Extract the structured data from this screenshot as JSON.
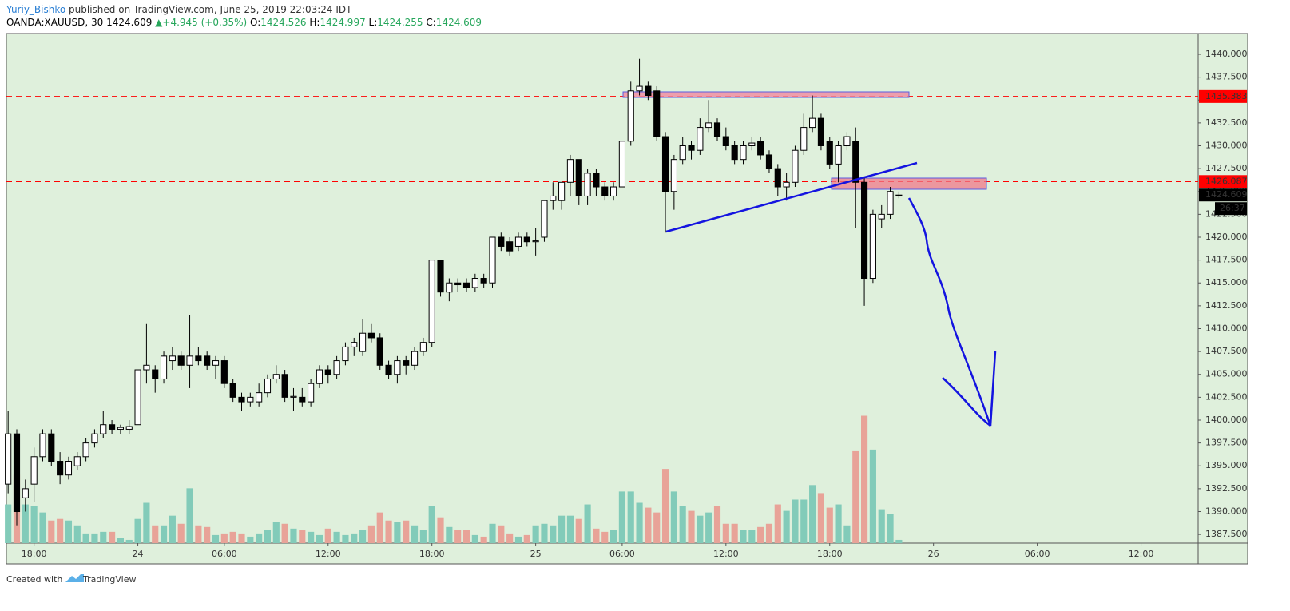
{
  "header": {
    "author": "Yuriy_Bishko",
    "published": "published on TradingView.com, June 25, 2019 22:03:24 IDT",
    "symbol": "OANDA:XAUUSD, 30",
    "price": "1424.609",
    "arrow": "▲",
    "change": "+4.945 (+0.35%)",
    "o_label": "O:",
    "o": "1424.526",
    "h_label": "H:",
    "h": "1424.997",
    "l_label": "L:",
    "l": "1424.255",
    "c_label": "C:",
    "c": "1424.609"
  },
  "footer": {
    "created": "Created with",
    "brand": "TradingView"
  },
  "chart_data": {
    "type": "candlestick",
    "open": [
      1393,
      1398.5,
      1391.5,
      1393,
      1396,
      1398.5,
      1395.5,
      1394,
      1395,
      1396,
      1397.5,
      1398.5,
      1399.5,
      1399,
      1399,
      1399.5,
      1405.5,
      1405.5,
      1404.5,
      1406.5,
      1407,
      1406,
      1407,
      1407,
      1406,
      1406.5,
      1404,
      1402.5,
      1402,
      1402,
      1403,
      1404.5,
      1405,
      1402.5,
      1402.5,
      1402,
      1404,
      1405.5,
      1405,
      1406.5,
      1408,
      1407.5,
      1409.5,
      1409,
      1406,
      1405,
      1406.5,
      1406,
      1407.5,
      1408.5,
      1417.5,
      1414,
      1415,
      1415,
      1414.5,
      1415.5,
      1415,
      1420,
      1419.5,
      1419,
      1420,
      1419.5,
      1420,
      1424,
      1424,
      1426,
      1428.5,
      1424.5,
      1427,
      1425.5,
      1424.5,
      1425.5,
      1430.5,
      1436,
      1436.5,
      1436,
      1431,
      1425,
      1428.5,
      1430,
      1429.5,
      1432,
      1432.5,
      1431,
      1430,
      1428.5,
      1430,
      1430.5,
      1429,
      1427.5,
      1425.5,
      1426,
      1429.5,
      1432,
      1433,
      1430.5,
      1428,
      1430,
      1430.5,
      1426,
      1415.5,
      1422,
      1422.5,
      1424.526
    ],
    "high": [
      1401,
      1399,
      1393.5,
      1397,
      1399,
      1399,
      1396.5,
      1396,
      1396.5,
      1398,
      1399,
      1401,
      1400,
      1399.5,
      1400,
      1405.5,
      1410.5,
      1406,
      1407.5,
      1408,
      1407.5,
      1411.5,
      1408,
      1407.5,
      1407,
      1407,
      1404.5,
      1403,
      1403,
      1404,
      1405,
      1406,
      1405.5,
      1403.5,
      1403.5,
      1404.5,
      1406,
      1406,
      1407,
      1408.5,
      1409,
      1411,
      1410.5,
      1409.5,
      1406.5,
      1407,
      1407,
      1408,
      1409,
      1417.5,
      1417.5,
      1415.5,
      1415.5,
      1415.5,
      1416,
      1416,
      1420,
      1420.5,
      1420,
      1420.5,
      1420.5,
      1421,
      1424,
      1426,
      1426,
      1429,
      1428.5,
      1427.5,
      1427.5,
      1426,
      1426,
      1430.5,
      1437,
      1439.5,
      1437,
      1436.5,
      1431.5,
      1429,
      1431,
      1430.5,
      1433,
      1435,
      1433,
      1432,
      1430.5,
      1430.5,
      1431,
      1431,
      1429.5,
      1428,
      1427,
      1430,
      1433.5,
      1435.5,
      1433.5,
      1431,
      1430.5,
      1431.5,
      1432,
      1426.5,
      1423,
      1423.5,
      1425.5,
      1424.997
    ],
    "low": [
      1392,
      1388.5,
      1390,
      1391,
      1395.5,
      1395,
      1393,
      1393.5,
      1394.5,
      1395.5,
      1397,
      1398,
      1398.5,
      1398.5,
      1398.5,
      1399.5,
      1404,
      1403,
      1404,
      1405.5,
      1405.5,
      1403.5,
      1406,
      1405.5,
      1404.5,
      1403.5,
      1402,
      1401,
      1401.5,
      1401.5,
      1402.5,
      1404,
      1402,
      1401,
      1401.5,
      1401.5,
      1403.5,
      1404,
      1404.5,
      1406,
      1407,
      1407,
      1408.5,
      1405.5,
      1404.5,
      1404,
      1405,
      1405.5,
      1407,
      1408,
      1413.5,
      1413,
      1414,
      1414,
      1414,
      1414.5,
      1414.5,
      1418.5,
      1418,
      1418.5,
      1419,
      1418,
      1419.5,
      1423,
      1423,
      1424.5,
      1423.5,
      1423.5,
      1424.5,
      1424,
      1424,
      1425.5,
      1430,
      1435.5,
      1435,
      1430.5,
      1420.5,
      1423,
      1428,
      1428.5,
      1429,
      1431.5,
      1430.5,
      1429.5,
      1428,
      1428,
      1429.5,
      1428.5,
      1427,
      1424.5,
      1424,
      1425.5,
      1429,
      1431.5,
      1429.5,
      1427.5,
      1426,
      1429.5,
      1421,
      1412.5,
      1415,
      1421,
      1422,
      1424.255
    ],
    "close": [
      1398.5,
      1390,
      1392.5,
      1396,
      1398.5,
      1395.5,
      1394,
      1395.5,
      1396,
      1397.5,
      1398.5,
      1399.5,
      1399,
      1399.2,
      1399.3,
      1405.5,
      1406,
      1404.5,
      1407,
      1407,
      1406,
      1407,
      1406.5,
      1406,
      1406.5,
      1404,
      1402.5,
      1402,
      1402.5,
      1403,
      1404.5,
      1405,
      1402.5,
      1402.6,
      1402,
      1404,
      1405.5,
      1405,
      1406.5,
      1408,
      1408.5,
      1409.5,
      1409,
      1406,
      1405,
      1406.5,
      1406,
      1407.5,
      1408.5,
      1417.5,
      1414,
      1415,
      1414.8,
      1414.5,
      1415.5,
      1415,
      1420,
      1419,
      1418.5,
      1420,
      1419.5,
      1419.6,
      1424,
      1424.5,
      1426,
      1428.5,
      1424.5,
      1427,
      1425.5,
      1424.5,
      1425.5,
      1430.5,
      1436,
      1436.5,
      1435.5,
      1431,
      1425,
      1428.5,
      1430,
      1429.5,
      1432,
      1432.5,
      1431,
      1430,
      1428.5,
      1430,
      1430.3,
      1429,
      1427.5,
      1425.5,
      1426,
      1429.5,
      1432,
      1433,
      1430,
      1428,
      1430,
      1431,
      1426,
      1415.5,
      1422.5,
      1422.5,
      1425,
      1424.609
    ],
    "volume": [
      48,
      85,
      48,
      46,
      38,
      28,
      30,
      28,
      22,
      12,
      12,
      14,
      14,
      6,
      4,
      30,
      50,
      22,
      22,
      34,
      24,
      68,
      22,
      20,
      10,
      12,
      14,
      12,
      8,
      12,
      16,
      26,
      24,
      18,
      16,
      14,
      10,
      18,
      14,
      10,
      12,
      16,
      22,
      38,
      28,
      26,
      28,
      22,
      16,
      46,
      32,
      20,
      16,
      16,
      10,
      8,
      24,
      22,
      12,
      8,
      10,
      22,
      24,
      22,
      34,
      34,
      30,
      48,
      18,
      14,
      16,
      64,
      64,
      50,
      44,
      38,
      92,
      64,
      46,
      40,
      34,
      38,
      46,
      24,
      24,
      16,
      16,
      20,
      24,
      48,
      40,
      54,
      54,
      72,
      62,
      44,
      48,
      22,
      114,
      158,
      116,
      42,
      36,
      4
    ],
    "up_color": "#ffffff",
    "down_color": "#000000",
    "volume_up_color": "#82cbb9",
    "volume_down_color": "#e8a398",
    "ylim": [
      1386.55,
      1442.27
    ],
    "yticks": [
      {
        "value": 1440,
        "label": "1440.000"
      },
      {
        "value": 1437.5,
        "label": "1437.500"
      },
      {
        "value": 1435,
        "label": "1435.000"
      },
      {
        "value": 1432.5,
        "label": "1432.500"
      },
      {
        "value": 1430,
        "label": "1430.000"
      },
      {
        "value": 1427.5,
        "label": "1427.500"
      },
      {
        "value": 1425,
        "label": "1425.000"
      },
      {
        "value": 1422.5,
        "label": "1422.500"
      },
      {
        "value": 1420,
        "label": "1420.000"
      },
      {
        "value": 1417.5,
        "label": "1417.500"
      },
      {
        "value": 1415,
        "label": "1415.000"
      },
      {
        "value": 1412.5,
        "label": "1412.500"
      },
      {
        "value": 1410,
        "label": "1410.000"
      },
      {
        "value": 1407.5,
        "label": "1407.500"
      },
      {
        "value": 1405,
        "label": "1405.000"
      },
      {
        "value": 1402.5,
        "label": "1402.500"
      },
      {
        "value": 1400,
        "label": "1400.000"
      },
      {
        "value": 1397.5,
        "label": "1397.500"
      },
      {
        "value": 1395,
        "label": "1395.000"
      },
      {
        "value": 1392.5,
        "label": "1392.500"
      },
      {
        "value": 1390,
        "label": "1390.000"
      },
      {
        "value": 1387.5,
        "label": "1387.500"
      }
    ],
    "xlim": [
      -0.2,
      137.6
    ],
    "xticks": [
      {
        "value": 3,
        "label": "18:00"
      },
      {
        "value": 15,
        "label": "24"
      },
      {
        "value": 25,
        "label": "06:00"
      },
      {
        "value": 37,
        "label": "12:00"
      },
      {
        "value": 49,
        "label": "18:00"
      },
      {
        "value": 61,
        "label": "25"
      },
      {
        "value": 71,
        "label": "06:00"
      },
      {
        "value": 83,
        "label": "12:00"
      },
      {
        "value": 95,
        "label": "18:00"
      },
      {
        "value": 107,
        "label": "26"
      },
      {
        "value": 119,
        "label": "06:00"
      },
      {
        "value": 131,
        "label": "12:00"
      }
    ],
    "levels": [
      1435.383,
      1426.087
    ],
    "level_color": "#ff0000",
    "last_price": 1424.609,
    "countdown": "26:37"
  }
}
